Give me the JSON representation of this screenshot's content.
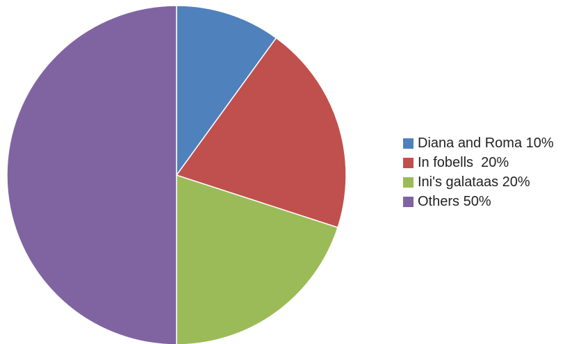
{
  "chart_data": {
    "type": "pie",
    "title": "",
    "start": "top",
    "direction": "clockwise",
    "slices": [
      {
        "label": "Diana and Roma 10%",
        "value": 10,
        "color": "#4f81bd"
      },
      {
        "label": "In fobells  20%",
        "value": 20,
        "color": "#c0504d"
      },
      {
        "label": "Ini's galataas 20%",
        "value": 20,
        "color": "#9bbb59"
      },
      {
        "label": "Others 50%",
        "value": 50,
        "color": "#8064a2"
      }
    ],
    "legend": {
      "placement": "right"
    }
  }
}
